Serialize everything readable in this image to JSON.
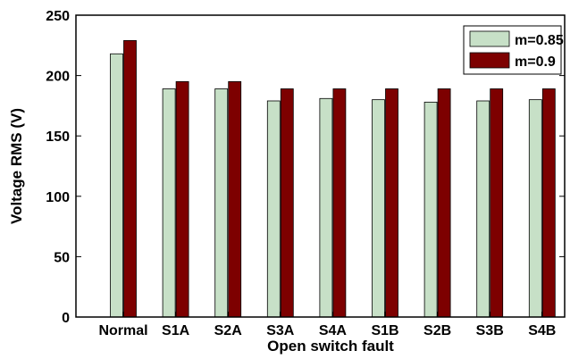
{
  "chart_data": {
    "type": "bar",
    "title": "",
    "xlabel": "Open switch fault",
    "ylabel": "Voltage RMS (V)",
    "categories": [
      "Normal",
      "S1A",
      "S2A",
      "S3A",
      "S4A",
      "S1B",
      "S2B",
      "S3B",
      "S4B"
    ],
    "ylim": [
      0,
      250
    ],
    "yticks": [
      0,
      50,
      100,
      150,
      200,
      250
    ],
    "grid": false,
    "legend_position": "top-right",
    "series": [
      {
        "name": "m=0.85",
        "color": "#c7e0c7",
        "values": [
          218,
          189,
          189,
          179,
          181,
          180,
          178,
          179,
          180
        ]
      },
      {
        "name": "m=0.9",
        "color": "#7d0000",
        "values": [
          229,
          195,
          195,
          189,
          189,
          189,
          189,
          189,
          189
        ]
      }
    ]
  }
}
